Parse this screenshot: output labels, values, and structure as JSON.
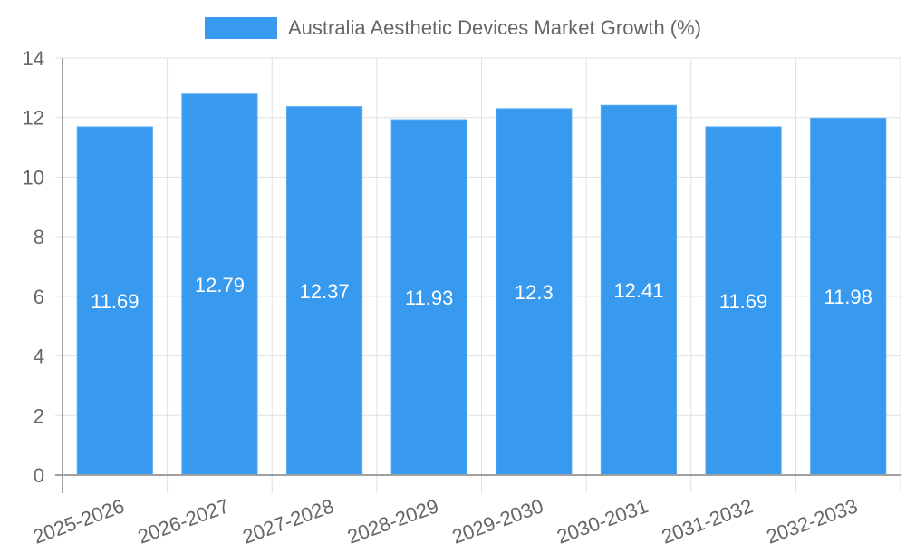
{
  "chart_data": {
    "type": "bar",
    "title": "",
    "legend": {
      "position": "top",
      "entries": [
        "Australia Aesthetic Devices Market Growth (%)"
      ]
    },
    "categories": [
      "2025-2026",
      "2026-2027",
      "2027-2028",
      "2028-2029",
      "2029-2030",
      "2030-2031",
      "2031-2032",
      "2032-2033"
    ],
    "series": [
      {
        "name": "Australia Aesthetic Devices Market Growth (%)",
        "values": [
          11.69,
          12.79,
          12.37,
          11.93,
          12.3,
          12.41,
          11.69,
          11.98
        ],
        "color": "#379AEF"
      }
    ],
    "value_labels": [
      "11.69",
      "12.79",
      "12.37",
      "11.93",
      "12.3",
      "12.41",
      "11.69",
      "11.98"
    ],
    "xlabel": "",
    "ylabel": "",
    "ylim": [
      0,
      14
    ],
    "yticks": [
      0,
      2,
      4,
      6,
      8,
      10,
      12,
      14
    ],
    "grid": true,
    "x_tick_rotation": -20
  },
  "colors": {
    "bar": "#379AEF",
    "bar_border": "#5AAEF2",
    "grid": "#E0E0E0",
    "axis": "#A0A0A0",
    "tick_text": "#666666",
    "value_text": "#FFFFFF"
  }
}
